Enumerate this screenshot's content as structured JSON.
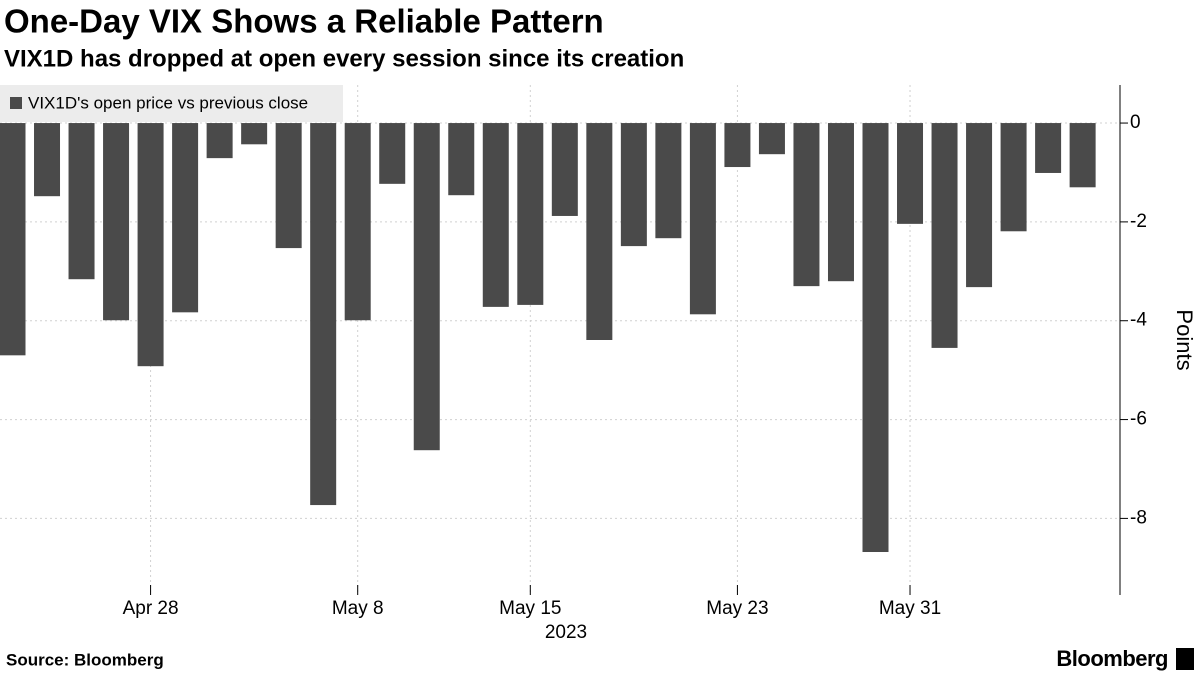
{
  "chart_data": {
    "type": "bar",
    "title": "One-Day VIX Shows a Reliable Pattern",
    "subtitle": "VIX1D has dropped at open every session since its creation",
    "y_label": "Points",
    "x_annotation": "2023",
    "source": "Source: Bloomberg",
    "brand": "Bloomberg",
    "categories": [
      null,
      null,
      null,
      null,
      "Apr 28",
      null,
      null,
      null,
      null,
      null,
      "May 8",
      null,
      null,
      null,
      null,
      "May 15",
      null,
      null,
      null,
      null,
      null,
      "May 23",
      null,
      null,
      null,
      null,
      "May 31",
      null,
      null,
      null,
      null,
      null
    ],
    "series": [
      {
        "name": "VIX1D's open price vs previous close",
        "color": "#4a4a4a",
        "values": [
          -4.7,
          -1.48,
          -3.16,
          -3.99,
          -4.92,
          -3.83,
          -0.71,
          -0.43,
          -2.53,
          -7.73,
          -3.99,
          -1.23,
          -6.62,
          -1.46,
          -3.72,
          -3.68,
          -1.88,
          -4.39,
          -2.49,
          -2.33,
          -3.87,
          -0.89,
          -0.63,
          -3.3,
          -3.2,
          -8.68,
          -2.04,
          -4.55,
          -3.32,
          -2.19,
          -1.01,
          -1.3
        ]
      }
    ],
    "ylim": [
      -9.55,
      0.77
    ],
    "yticks": [
      0,
      -2,
      -4,
      -6,
      -8
    ],
    "grid": true,
    "legend_position": "top-left"
  }
}
